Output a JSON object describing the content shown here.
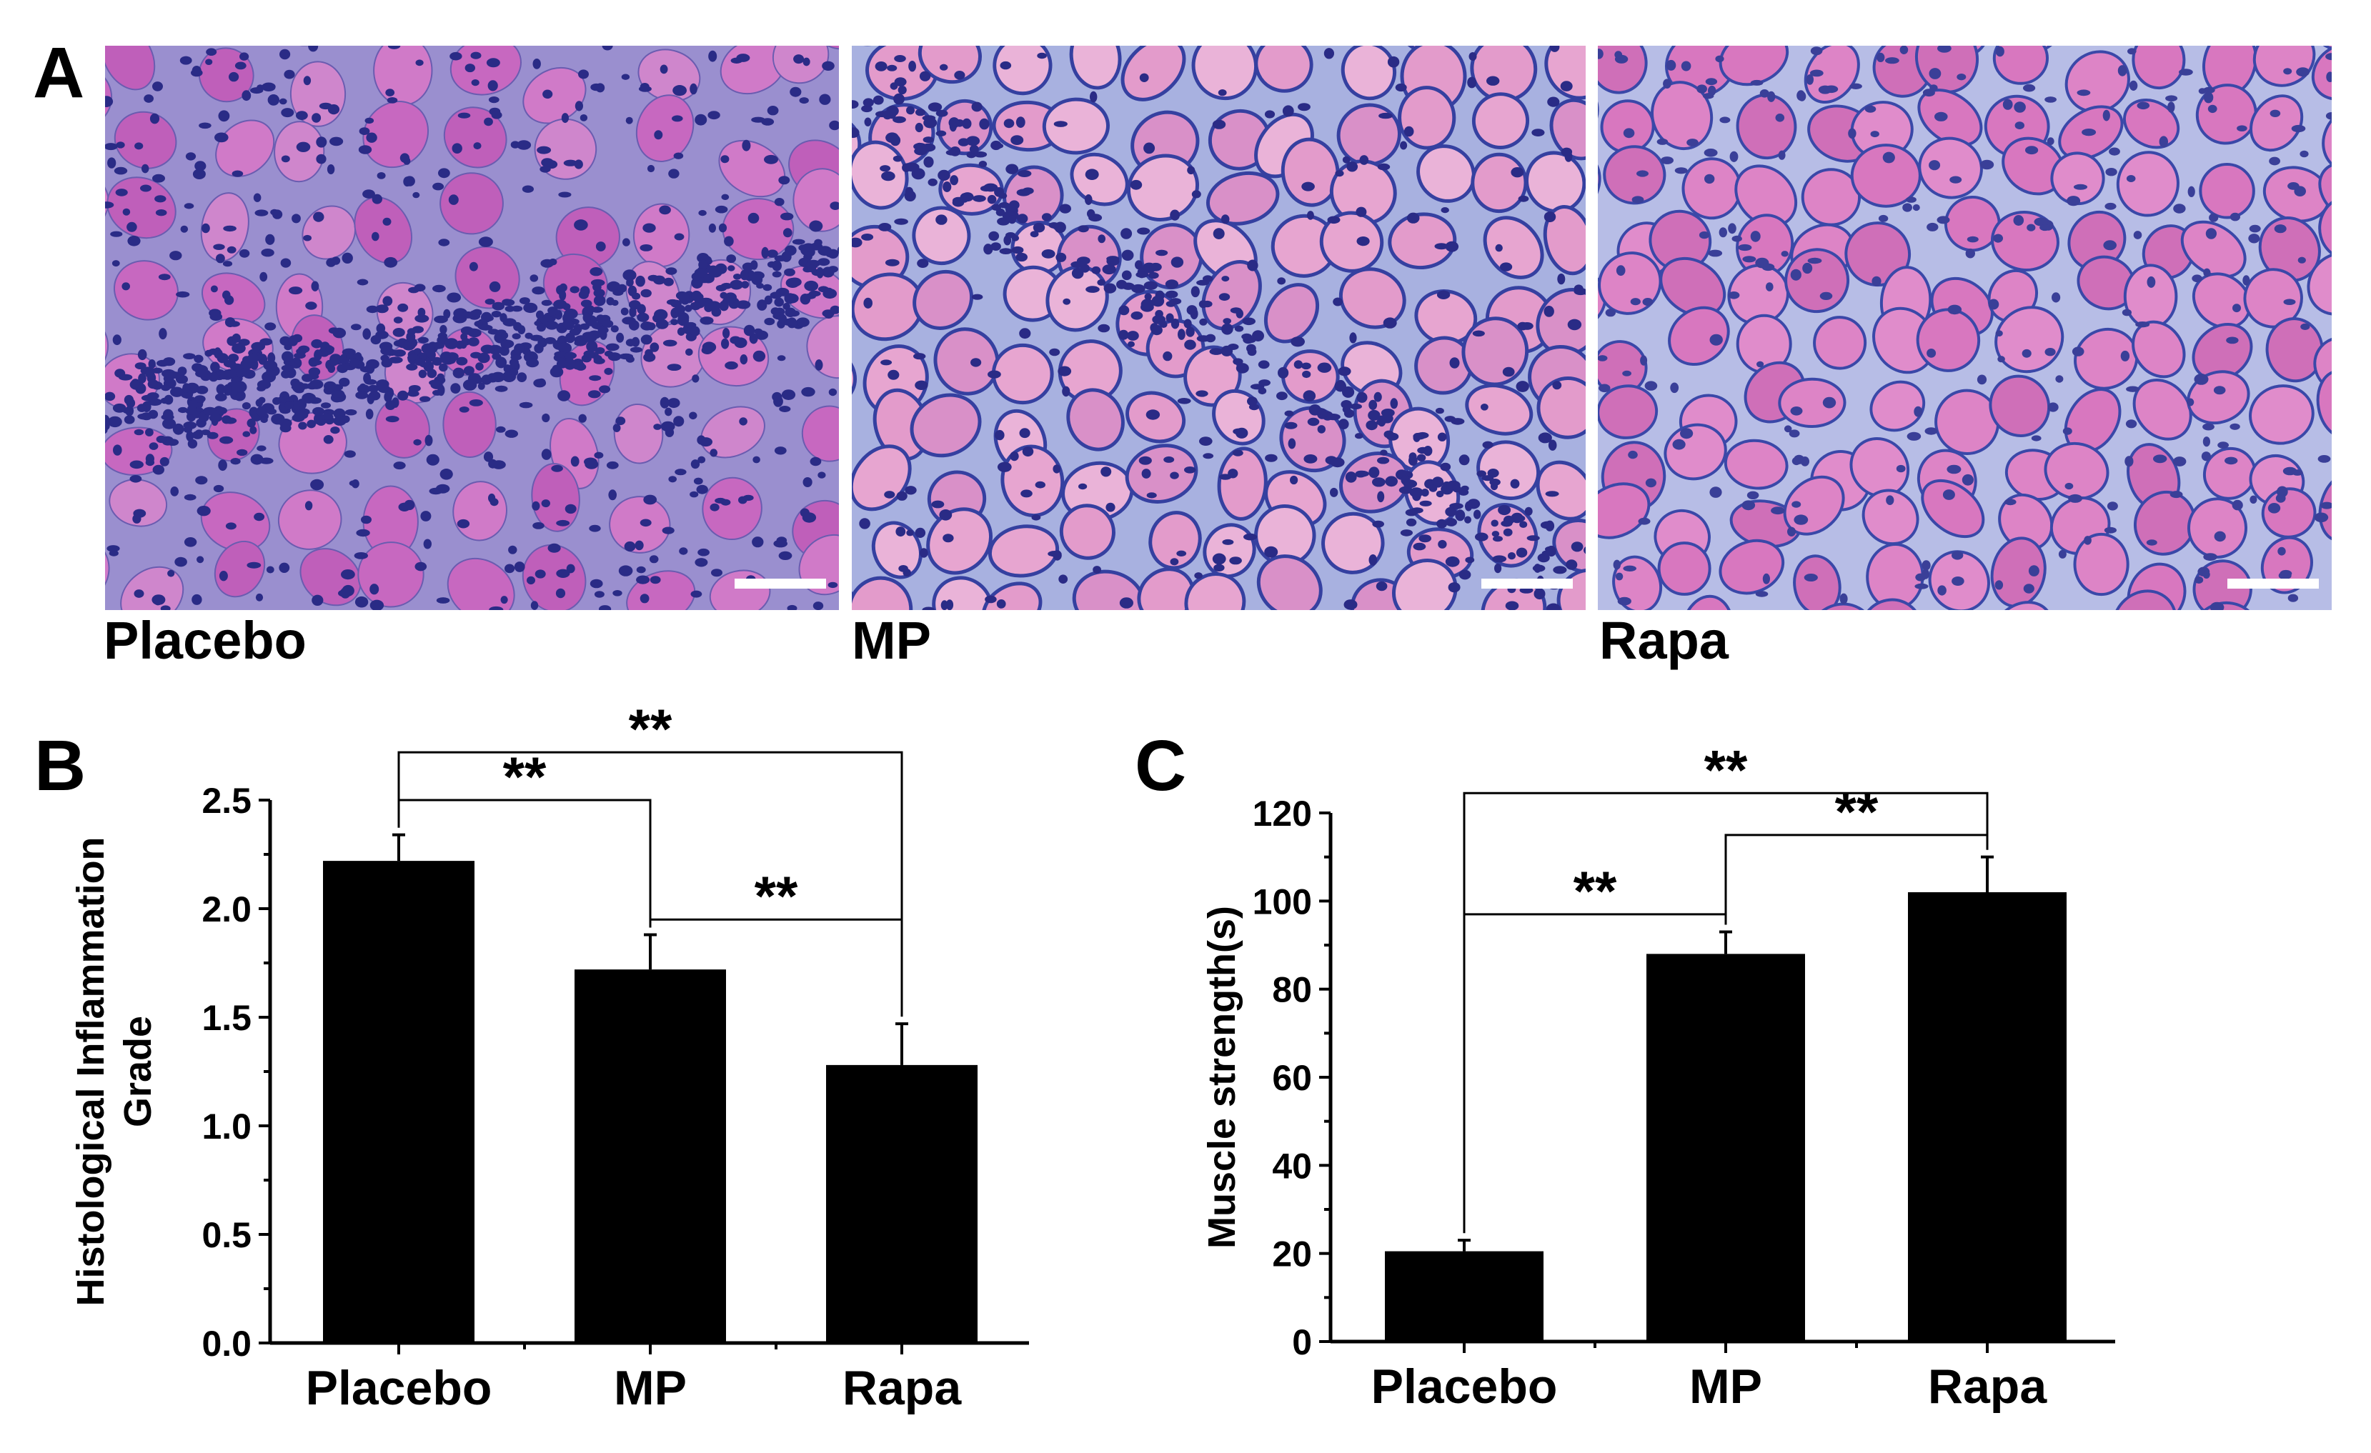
{
  "panels": {
    "a": {
      "letter": "A",
      "images": [
        {
          "caption": "Placebo",
          "description": "H&E stained muscle section with heavy inflammatory cell infiltration"
        },
        {
          "caption": "MP",
          "description": "H&E stained muscle section with moderate infiltration between fibers"
        },
        {
          "caption": "Rapa",
          "description": "H&E stained muscle section with intact fibers and sparse infiltration"
        }
      ],
      "colors": {
        "fiber_placebo": "#c768c0",
        "fiber_mp": "#e7a5d0",
        "fiber_rapa": "#dd84c6",
        "nuclei": "#2a2b86",
        "stroma": "#a8b1e0"
      }
    },
    "b": {
      "letter": "B"
    },
    "c": {
      "letter": "C"
    }
  },
  "chart_data": [
    {
      "type": "bar",
      "categories": [
        "Placebo",
        "MP",
        "Rapa"
      ],
      "values": [
        2.22,
        1.72,
        1.28
      ],
      "errors": [
        0.12,
        0.16,
        0.19
      ],
      "xlabel": "",
      "ylabel": "Histological Inflammation Grade",
      "ylim": [
        0,
        2.5
      ],
      "yticks": [
        "0.0",
        "0.5",
        "1.0",
        "1.5",
        "2.0",
        "2.5"
      ],
      "significance": [
        {
          "from": "Placebo",
          "to": "MP",
          "label": "**",
          "level": 2.5
        },
        {
          "from": "Placebo",
          "to": "Rapa",
          "label": "**",
          "level": 2.72
        },
        {
          "from": "MP",
          "to": "Rapa",
          "label": "**",
          "level": 1.95
        }
      ],
      "bar_color": "#000000"
    },
    {
      "type": "bar",
      "categories": [
        "Placebo",
        "MP",
        "Rapa"
      ],
      "values": [
        20.5,
        88,
        102
      ],
      "errors": [
        2.5,
        5,
        8
      ],
      "xlabel": "",
      "ylabel": "Muscle strength(s)",
      "ylim": [
        0,
        120
      ],
      "yticks": [
        "0",
        "20",
        "40",
        "60",
        "80",
        "100",
        "120"
      ],
      "significance": [
        {
          "from": "Placebo",
          "to": "MP",
          "label": "**",
          "level": 97
        },
        {
          "from": "Placebo",
          "to": "Rapa",
          "label": "**",
          "level": 124.5
        },
        {
          "from": "MP",
          "to": "Rapa",
          "label": "**",
          "level": 115
        }
      ],
      "bar_color": "#000000"
    }
  ]
}
